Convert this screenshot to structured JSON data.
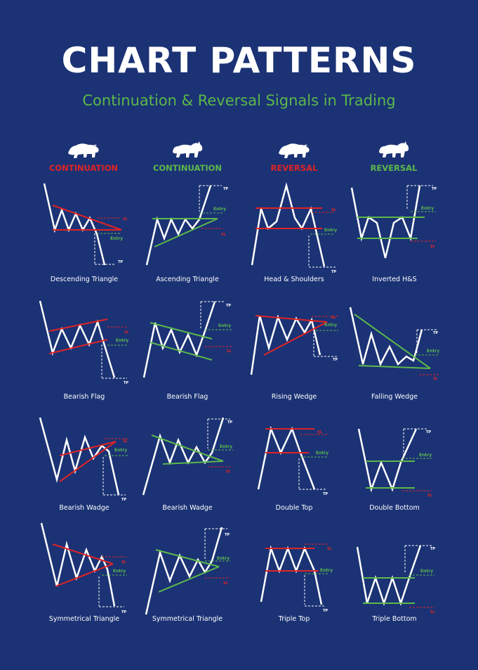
{
  "title": "CHART PATTERNS",
  "subtitle": "Continuation & Reversal Signals in Trading",
  "colors": {
    "background": "#1b3275",
    "bearish": "#e02424",
    "bullish": "#5cb84a",
    "line": "#ffffff"
  },
  "labels": {
    "entry": "Entry",
    "sl": "SL",
    "tp": "TP"
  },
  "columns": [
    {
      "label": "CONTINUATION",
      "color": "#e02424",
      "icon": "bear-icon"
    },
    {
      "label": "CONTINUATION",
      "color": "#5cb84a",
      "icon": "bull-icon"
    },
    {
      "label": "REVERSAL",
      "color": "#e02424",
      "icon": "bear-icon"
    },
    {
      "label": "REVERSAL",
      "color": "#5cb84a",
      "icon": "bull-icon"
    }
  ],
  "patterns": [
    {
      "name": "Descending Triangle"
    },
    {
      "name": "Ascending Triangle"
    },
    {
      "name": "Head & Shoulders"
    },
    {
      "name": "Inverted H&S"
    },
    {
      "name": "Bearish Flag"
    },
    {
      "name": "Bearish Flag"
    },
    {
      "name": "Rising Wedge"
    },
    {
      "name": "Falling Wedge"
    },
    {
      "name": "Bearish Wadge"
    },
    {
      "name": "Bearish Wadge"
    },
    {
      "name": "Double Top"
    },
    {
      "name": "Double Bottom"
    },
    {
      "name": "Symmetrical Triangle"
    },
    {
      "name": "Symmetrical Triangle"
    },
    {
      "name": "Triple Top"
    },
    {
      "name": "Triple Bottom"
    }
  ]
}
